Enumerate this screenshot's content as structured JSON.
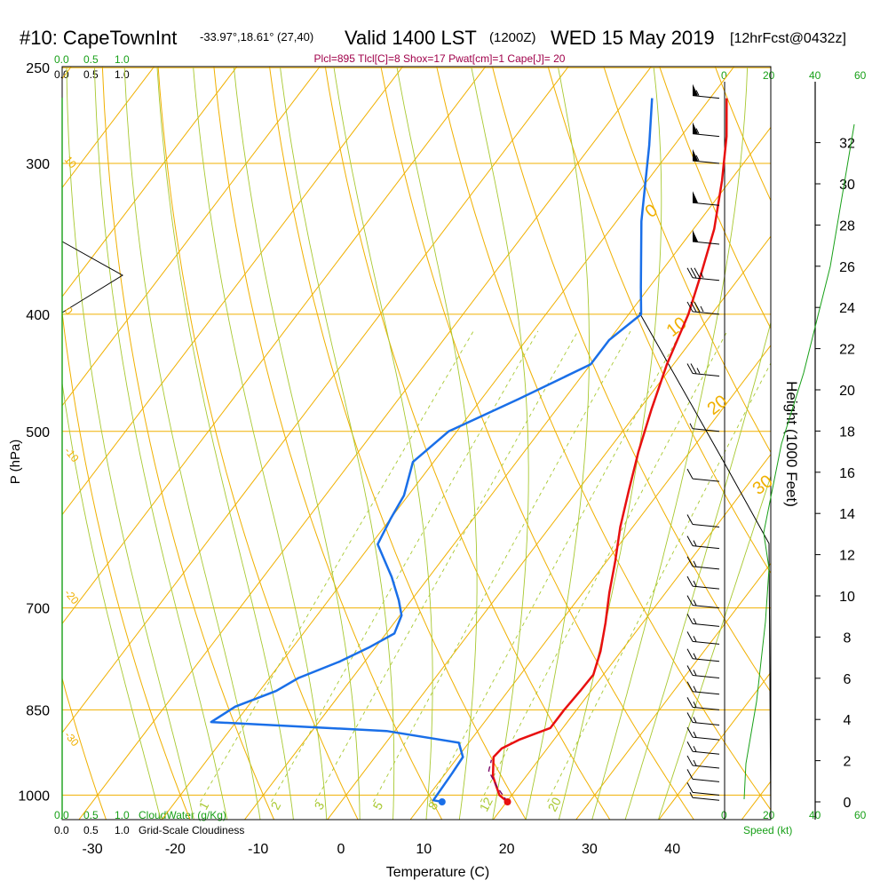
{
  "header": {
    "station": "#10: CapeTownInt",
    "coords": "-33.97°,18.61° (27,40)",
    "valid": "Valid 1400 LST",
    "utc": "(1200Z)",
    "date": "WED 15 May 2019",
    "forecast": "[12hrFcst@0432z]",
    "indices": "Plcl=895 Tlcl[C]=8 Shox=17 Pwat[cm]=1 Cape[J]= 20"
  },
  "colors": {
    "temperature": "#e81010",
    "dewpoint": "#1a6fe8",
    "isotherm": "#f0b000",
    "dry_adiabat": "#f0b000",
    "moist_adiabat": "#a8c830",
    "mixing_ratio": "#a8c830",
    "green_text": "#18a018",
    "indices_text": "#a0004a"
  },
  "axes": {
    "ylabel": "P (hPa)",
    "xlabel": "Temperature (C)",
    "height_label": "Height (1000 Feet)",
    "pressure_ticks": [
      "250",
      "300",
      "400",
      "500",
      "700",
      "850",
      "1000"
    ],
    "temp_ticks": [
      "-30",
      "-20",
      "-10",
      "0",
      "10",
      "20",
      "30",
      "40"
    ],
    "height_ticks": [
      "0",
      "2",
      "4",
      "6",
      "8",
      "10",
      "12",
      "14",
      "16",
      "18",
      "20",
      "22",
      "24",
      "26",
      "28",
      "30",
      "32"
    ]
  },
  "cloud_scales": {
    "top_green": [
      "0.0",
      "0.5",
      "1.0"
    ],
    "top_black": [
      "0.0",
      "0.5",
      "1.0"
    ],
    "bottom_green": [
      "0.0",
      "0.5",
      "1.0"
    ],
    "bottom_black": [
      "0.0",
      "0.5",
      "1.0"
    ],
    "cloudwater_label": "CloudWater (g/Kg)",
    "cloudiness_label": "Grid-Scale Cloudiness"
  },
  "speed_scale": {
    "top": [
      "0",
      "20",
      "40",
      "60"
    ],
    "bottom": [
      "0",
      "20",
      "40",
      "60"
    ],
    "label": "Speed (kt)"
  },
  "chart_labels": {
    "isotherm": [
      "0",
      "10",
      "20",
      "30"
    ],
    "dry_adiabat_left": [
      "10",
      "0",
      "-10",
      "-20",
      "-30"
    ],
    "mixing_ratio": [
      "1",
      "2",
      "3",
      "5",
      "8",
      "12",
      "20"
    ]
  },
  "chart_data": {
    "type": "line",
    "xlabel": "Temperature (C)",
    "ylabel": "P (hPa)",
    "xlim": [
      -35,
      50
    ],
    "ylim": [
      1020,
      250
    ],
    "y_scale": "log (skew-T)",
    "series": [
      {
        "role": "temperature",
        "points": [
          [
            20.1,
            1013
          ],
          [
            18.5,
            1000
          ],
          [
            16,
            965
          ],
          [
            14.3,
            930
          ],
          [
            14.5,
            915
          ],
          [
            15.8,
            900
          ],
          [
            18.5,
            880
          ],
          [
            18.5,
            850
          ],
          [
            18.7,
            820
          ],
          [
            18.8,
            795
          ],
          [
            17.5,
            760
          ],
          [
            15.5,
            720
          ],
          [
            13.2,
            680
          ],
          [
            11,
            640
          ],
          [
            8.5,
            600
          ],
          [
            6.2,
            560
          ],
          [
            3.8,
            520
          ],
          [
            1.5,
            480
          ],
          [
            -0.8,
            440
          ],
          [
            -2.8,
            400
          ],
          [
            -5,
            370
          ],
          [
            -7.5,
            340
          ],
          [
            -11,
            310
          ],
          [
            -14.5,
            285
          ],
          [
            -18,
            265
          ]
        ]
      },
      {
        "role": "dewpoint",
        "points": [
          [
            12.2,
            1013
          ],
          [
            11,
            1010
          ],
          [
            10.8,
            960
          ],
          [
            10.6,
            930
          ],
          [
            8.8,
            905
          ],
          [
            -1,
            885
          ],
          [
            -23,
            870
          ],
          [
            -21.5,
            845
          ],
          [
            -18,
            820
          ],
          [
            -16.5,
            800
          ],
          [
            -13,
            775
          ],
          [
            -10.8,
            755
          ],
          [
            -9,
            735
          ],
          [
            -9.8,
            710
          ],
          [
            -11.5,
            690
          ],
          [
            -14.5,
            660
          ],
          [
            -19.2,
            620
          ],
          [
            -20,
            590
          ],
          [
            -20.5,
            565
          ],
          [
            -22.5,
            530
          ],
          [
            -21,
            500
          ],
          [
            -15.5,
            470
          ],
          [
            -10,
            440
          ],
          [
            -10,
            420
          ],
          [
            -8.5,
            400
          ],
          [
            -11,
            380
          ],
          [
            -17,
            335
          ],
          [
            -23,
            290
          ],
          [
            -27,
            265
          ]
        ]
      },
      {
        "role": "parcel",
        "points": [
          [
            20.1,
            1013
          ],
          [
            17.5,
            985
          ],
          [
            15,
            955
          ],
          [
            14.3,
            935
          ]
        ]
      }
    ],
    "wind_barbs_kt": [
      {
        "p": 1010,
        "speed": 5
      },
      {
        "p": 1000,
        "speed": 10
      },
      {
        "p": 975,
        "speed": 10
      },
      {
        "p": 950,
        "speed": 15
      },
      {
        "p": 925,
        "speed": 15
      },
      {
        "p": 900,
        "speed": 15
      },
      {
        "p": 875,
        "speed": 15
      },
      {
        "p": 850,
        "speed": 15
      },
      {
        "p": 825,
        "speed": 15
      },
      {
        "p": 800,
        "speed": 15
      },
      {
        "p": 775,
        "speed": 15
      },
      {
        "p": 750,
        "speed": 15
      },
      {
        "p": 725,
        "speed": 15
      },
      {
        "p": 700,
        "speed": 15
      },
      {
        "p": 675,
        "speed": 15
      },
      {
        "p": 650,
        "speed": 15
      },
      {
        "p": 625,
        "speed": 15
      },
      {
        "p": 600,
        "speed": 10
      },
      {
        "p": 550,
        "speed": 10
      },
      {
        "p": 500,
        "speed": 5
      },
      {
        "p": 450,
        "speed": 25
      },
      {
        "p": 400,
        "speed": 35
      },
      {
        "p": 375,
        "speed": 35
      },
      {
        "p": 350,
        "speed": 50
      },
      {
        "p": 325,
        "speed": 50
      },
      {
        "p": 300,
        "speed": 55
      },
      {
        "p": 285,
        "speed": 55
      },
      {
        "p": 265,
        "speed": 55
      }
    ]
  }
}
